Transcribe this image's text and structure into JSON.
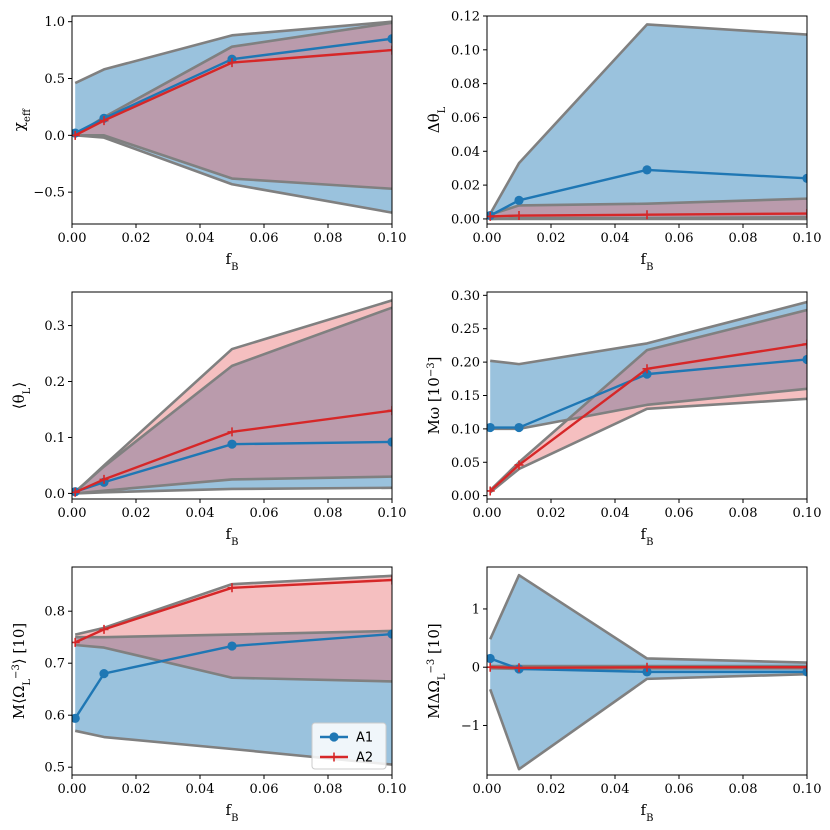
{
  "colors": {
    "A1": "#1f77b4",
    "A2": "#d62728",
    "band_A1": "#1f77b4",
    "band_A2": "#e6666a",
    "band_edge": "#808080"
  },
  "legend": {
    "entries": [
      "A1",
      "A2"
    ],
    "placement": "lower-right",
    "panel_index": 4
  },
  "chart_data": [
    {
      "type": "line",
      "ylabel_text": "χ",
      "ylabel_sub": "eff",
      "xlabel_text": "f",
      "xlabel_sub": "B",
      "xlim": [
        0.0,
        0.1
      ],
      "ylim": [
        -0.78,
        1.05
      ],
      "xticks": [
        0.0,
        0.02,
        0.04,
        0.06,
        0.08,
        0.1
      ],
      "xtick_labels": [
        "0.00",
        "0.02",
        "0.04",
        "0.06",
        "0.08",
        "0.10"
      ],
      "yticks": [
        -0.5,
        0.0,
        0.5,
        1.0
      ],
      "ytick_labels": [
        "−0.5",
        "0.0",
        "0.5",
        "1.0"
      ],
      "series": [
        {
          "name": "A1",
          "x": [
            0.001,
            0.01,
            0.05,
            0.1
          ],
          "values": [
            0.02,
            0.15,
            0.67,
            0.85
          ],
          "band_upper": [
            0.46,
            0.58,
            0.88,
            1.0
          ],
          "band_lower": [
            0.0,
            -0.02,
            -0.43,
            -0.68
          ]
        },
        {
          "name": "A2",
          "x": [
            0.001,
            0.01,
            0.05,
            0.1
          ],
          "values": [
            0.0,
            0.13,
            0.64,
            0.75
          ],
          "band_upper": [
            0.0,
            0.16,
            0.78,
            0.99
          ],
          "band_lower": [
            0.0,
            0.0,
            -0.38,
            -0.47
          ]
        }
      ]
    },
    {
      "type": "line",
      "ylabel_text": "Δθ",
      "ylabel_sub": "L",
      "xlabel_text": "f",
      "xlabel_sub": "B",
      "xlim": [
        0.0,
        0.1
      ],
      "ylim": [
        -0.003,
        0.12
      ],
      "xticks": [
        0.0,
        0.02,
        0.04,
        0.06,
        0.08,
        0.1
      ],
      "xtick_labels": [
        "0.00",
        "0.02",
        "0.04",
        "0.06",
        "0.08",
        "0.10"
      ],
      "yticks": [
        0.0,
        0.02,
        0.04,
        0.06,
        0.08,
        0.1,
        0.12
      ],
      "ytick_labels": [
        "0.00",
        "0.02",
        "0.04",
        "0.06",
        "0.08",
        "0.10",
        "0.12"
      ],
      "series": [
        {
          "name": "A1",
          "x": [
            0.001,
            0.01,
            0.05,
            0.1
          ],
          "values": [
            0.002,
            0.011,
            0.029,
            0.024
          ],
          "band_upper": [
            0.003,
            0.033,
            0.115,
            0.109
          ],
          "band_lower": [
            0.0,
            0.0,
            0.0,
            0.0
          ]
        },
        {
          "name": "A2",
          "x": [
            0.001,
            0.01,
            0.05,
            0.1
          ],
          "values": [
            0.0015,
            0.002,
            0.0025,
            0.0032
          ],
          "band_upper": [
            0.0025,
            0.008,
            0.009,
            0.012
          ],
          "band_lower": [
            0.0,
            0.0005,
            0.0005,
            0.001
          ]
        }
      ]
    },
    {
      "type": "line",
      "ylabel_text": "⟨θ",
      "ylabel_sub": "L",
      "ylabel_suffix": "⟩",
      "xlabel_text": "f",
      "xlabel_sub": "B",
      "xlim": [
        0.0,
        0.1
      ],
      "ylim": [
        -0.01,
        0.36
      ],
      "xticks": [
        0.0,
        0.02,
        0.04,
        0.06,
        0.08,
        0.1
      ],
      "xtick_labels": [
        "0.00",
        "0.02",
        "0.04",
        "0.06",
        "0.08",
        "0.10"
      ],
      "yticks": [
        0.0,
        0.1,
        0.2,
        0.3
      ],
      "ytick_labels": [
        "0.0",
        "0.1",
        "0.2",
        "0.3"
      ],
      "series": [
        {
          "name": "A1",
          "x": [
            0.001,
            0.01,
            0.05,
            0.1
          ],
          "values": [
            0.003,
            0.02,
            0.088,
            0.092
          ],
          "band_upper": [
            0.003,
            0.048,
            0.228,
            0.332
          ],
          "band_lower": [
            0.0,
            0.002,
            0.008,
            0.01
          ]
        },
        {
          "name": "A2",
          "x": [
            0.001,
            0.01,
            0.05,
            0.1
          ],
          "values": [
            0.002,
            0.025,
            0.11,
            0.148
          ],
          "band_upper": [
            0.002,
            0.05,
            0.258,
            0.345
          ],
          "band_lower": [
            0.0,
            0.005,
            0.025,
            0.03
          ]
        }
      ]
    },
    {
      "type": "line",
      "ylabel_text": "Mω [10",
      "ylabel_sup": "−3",
      "ylabel_suffix": "]",
      "xlabel_text": "f",
      "xlabel_sub": "B",
      "xlim": [
        0.0,
        0.1
      ],
      "ylim": [
        -0.005,
        0.305
      ],
      "xticks": [
        0.0,
        0.02,
        0.04,
        0.06,
        0.08,
        0.1
      ],
      "xtick_labels": [
        "0.00",
        "0.02",
        "0.04",
        "0.06",
        "0.08",
        "0.10"
      ],
      "yticks": [
        0.0,
        0.05,
        0.1,
        0.15,
        0.2,
        0.25,
        0.3
      ],
      "ytick_labels": [
        "0.00",
        "0.05",
        "0.10",
        "0.15",
        "0.20",
        "0.25",
        "0.30"
      ],
      "series": [
        {
          "name": "A1",
          "x": [
            0.001,
            0.01,
            0.05,
            0.1
          ],
          "values": [
            0.102,
            0.102,
            0.182,
            0.204
          ],
          "band_upper": [
            0.202,
            0.197,
            0.228,
            0.29
          ],
          "band_lower": [
            0.1,
            0.1,
            0.136,
            0.16
          ]
        },
        {
          "name": "A2",
          "x": [
            0.001,
            0.01,
            0.05,
            0.1
          ],
          "values": [
            0.007,
            0.046,
            0.19,
            0.227
          ],
          "band_upper": [
            0.008,
            0.05,
            0.218,
            0.278
          ],
          "band_lower": [
            0.005,
            0.04,
            0.13,
            0.145
          ]
        }
      ]
    },
    {
      "type": "line",
      "ylabel_text": "M⟨Ω",
      "ylabel_sub": "L",
      "ylabel_suffix": "⟩ [10",
      "ylabel_sup": "−3",
      "ylabel_suffix2": "]",
      "xlabel_text": "f",
      "xlabel_sub": "B",
      "xlim": [
        0.0,
        0.1
      ],
      "ylim": [
        0.485,
        0.885
      ],
      "xticks": [
        0.0,
        0.02,
        0.04,
        0.06,
        0.08,
        0.1
      ],
      "xtick_labels": [
        "0.00",
        "0.02",
        "0.04",
        "0.06",
        "0.08",
        "0.10"
      ],
      "yticks": [
        0.5,
        0.6,
        0.7,
        0.8
      ],
      "ytick_labels": [
        "0.5",
        "0.6",
        "0.7",
        "0.8"
      ],
      "series": [
        {
          "name": "A1",
          "x": [
            0.001,
            0.01,
            0.05,
            0.1
          ],
          "values": [
            0.594,
            0.68,
            0.733,
            0.756
          ],
          "band_upper": [
            0.75,
            0.75,
            0.755,
            0.762
          ],
          "band_lower": [
            0.57,
            0.558,
            0.535,
            0.505
          ]
        },
        {
          "name": "A2",
          "x": [
            0.001,
            0.01,
            0.05,
            0.1
          ],
          "values": [
            0.74,
            0.765,
            0.845,
            0.86
          ],
          "band_upper": [
            0.755,
            0.768,
            0.852,
            0.868
          ],
          "band_lower": [
            0.735,
            0.73,
            0.672,
            0.665
          ]
        }
      ]
    },
    {
      "type": "line",
      "ylabel_text": "MΔΩ",
      "ylabel_sub": "L",
      "ylabel_suffix": " [10",
      "ylabel_sup": "−3",
      "ylabel_suffix2": "]",
      "xlabel_text": "f",
      "xlabel_sub": "B",
      "xlim": [
        0.0,
        0.1
      ],
      "ylim": [
        -1.85,
        1.72
      ],
      "xticks": [
        0.0,
        0.02,
        0.04,
        0.06,
        0.08,
        0.1
      ],
      "xtick_labels": [
        "0.00",
        "0.02",
        "0.04",
        "0.06",
        "0.08",
        "0.10"
      ],
      "yticks": [
        -1,
        0,
        1
      ],
      "ytick_labels": [
        "−1",
        "0",
        "1"
      ],
      "series": [
        {
          "name": "A1",
          "x": [
            0.001,
            0.01,
            0.05,
            0.1
          ],
          "values": [
            0.15,
            -0.03,
            -0.08,
            -0.08
          ],
          "band_upper": [
            0.48,
            1.58,
            0.15,
            0.08
          ],
          "band_lower": [
            -0.38,
            -1.75,
            -0.2,
            -0.12
          ]
        },
        {
          "name": "A2",
          "x": [
            0.001,
            0.01,
            0.05,
            0.1
          ],
          "values": [
            0.0,
            -0.01,
            0.0,
            0.0
          ],
          "band_upper": [
            0.02,
            0.02,
            0.02,
            0.02
          ],
          "band_lower": [
            -0.02,
            -0.03,
            -0.02,
            -0.02
          ]
        }
      ]
    }
  ]
}
